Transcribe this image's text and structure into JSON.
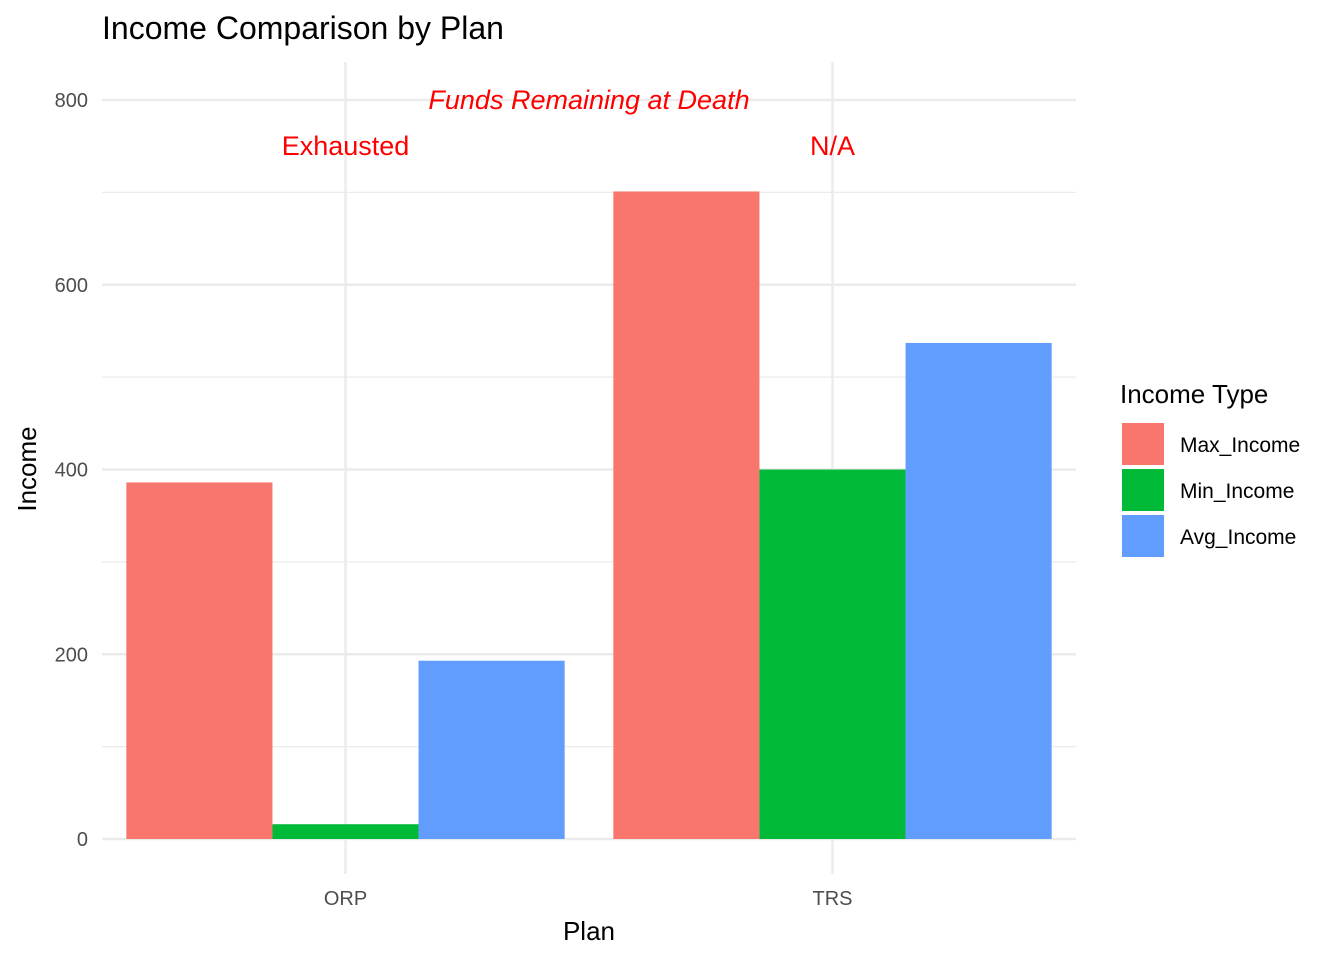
{
  "chart_data": {
    "type": "bar",
    "title": "Income Comparison by Plan",
    "xlabel": "Plan",
    "ylabel": "Income",
    "categories": [
      "ORP",
      "TRS"
    ],
    "series": [
      {
        "name": "Max_Income",
        "values": [
          386,
          701
        ],
        "color": "#F8766D"
      },
      {
        "name": "Min_Income",
        "values": [
          16,
          400
        ],
        "color": "#00BA38"
      },
      {
        "name": "Avg_Income",
        "values": [
          193,
          537
        ],
        "color": "#619CFF"
      }
    ],
    "ylim": [
      0,
      800
    ],
    "yticks": [
      0,
      200,
      400,
      600,
      800
    ],
    "grid": true,
    "legend": {
      "title": "Income Type",
      "position": "right"
    },
    "annotations": {
      "header": {
        "text": "Funds Remaining at Death",
        "y": 800,
        "color": "#ff0000"
      },
      "labels": [
        {
          "category": "ORP",
          "text": "Exhausted",
          "y": 750,
          "color": "#ff0000"
        },
        {
          "category": "TRS",
          "text": "N/A",
          "y": 750,
          "color": "#ff0000"
        }
      ]
    }
  }
}
